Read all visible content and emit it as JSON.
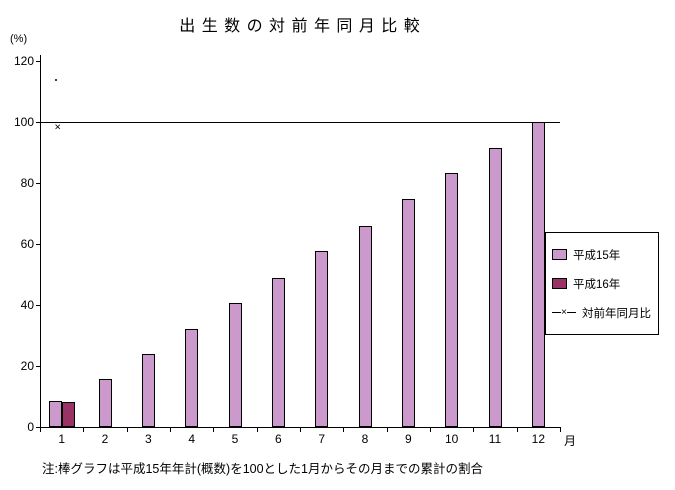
{
  "title": "出 生 数 の 対 前 年 同 月 比 較",
  "y_unit_label": "(%)",
  "x_unit_label": "月",
  "note": "注:棒グラフは平成15年年計(概数)を100とした1月からその月までの累計の割合",
  "colors": {
    "h15_bar": "#CC99CC",
    "h16_bar": "#993366",
    "axis": "#000000",
    "refline": "#000000",
    "background": "#FFFFFF"
  },
  "legend": {
    "items": [
      {
        "label": "平成15年",
        "type": "bar",
        "color": "#CC99CC"
      },
      {
        "label": "平成16年",
        "type": "bar",
        "color": "#993366"
      },
      {
        "label": "対前年同月比",
        "type": "line-x",
        "marker": "×"
      }
    ]
  },
  "chart_data": {
    "type": "bar",
    "title": "出生数の対前年同月比較",
    "xlabel": "月",
    "ylabel": "(%)",
    "categories": [
      "1",
      "2",
      "3",
      "4",
      "5",
      "6",
      "7",
      "8",
      "9",
      "10",
      "11",
      "12"
    ],
    "series": [
      {
        "name": "平成15年",
        "type": "bar",
        "color": "#CC99CC",
        "values": [
          8.5,
          15.7,
          23.9,
          32.1,
          40.6,
          48.7,
          57.7,
          66.0,
          74.9,
          83.3,
          91.5,
          100.0
        ]
      },
      {
        "name": "平成16年",
        "type": "bar",
        "color": "#993366",
        "values": [
          8.1,
          null,
          null,
          null,
          null,
          null,
          null,
          null,
          null,
          null,
          null,
          null
        ]
      },
      {
        "name": "対前年同月比",
        "type": "line",
        "marker": "x",
        "values": [
          98,
          null,
          null,
          null,
          null,
          null,
          null,
          null,
          null,
          null,
          null,
          null
        ]
      }
    ],
    "ylim": [
      0,
      120
    ],
    "yticks": [
      0,
      20,
      40,
      60,
      80,
      100,
      120
    ],
    "refline": 100,
    "grid": false,
    "legend_position": "right",
    "annotations": [
      {
        "name": "stray-dot",
        "month": 1,
        "value": 114
      }
    ]
  }
}
